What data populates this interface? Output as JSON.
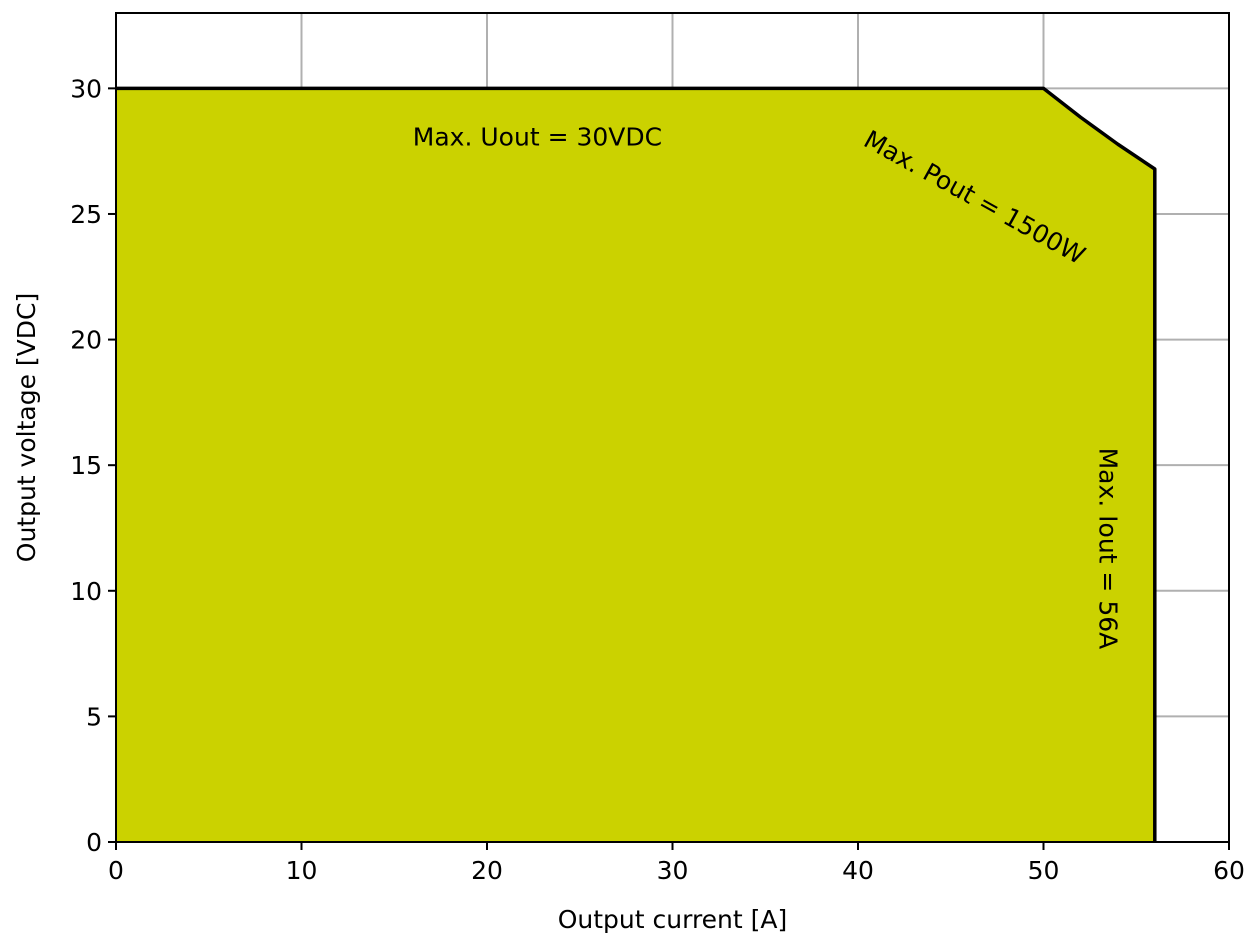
{
  "chart_data": {
    "type": "area",
    "xlabel": "Output current [A]",
    "ylabel": "Output voltage [VDC]",
    "xlim": [
      0,
      60
    ],
    "ylim": [
      0,
      33
    ],
    "xticks": [
      0,
      10,
      20,
      30,
      40,
      50,
      60
    ],
    "yticks": [
      0,
      5,
      10,
      15,
      20,
      25,
      30
    ],
    "grid": true,
    "fill_color": "#cbd200",
    "series": [
      {
        "x": [
          0,
          50,
          52,
          54,
          56,
          56
        ],
        "y": [
          30,
          30,
          28.85,
          27.78,
          26.79,
          0
        ]
      }
    ],
    "annotations": [
      {
        "text": "Max. Uout = 30VDC",
        "x": 16,
        "y": 28,
        "rotation": 0
      },
      {
        "text": "Max. Pout = 1500W",
        "x": 40.4,
        "y": 28,
        "rotation": 29
      },
      {
        "text": "Max. Iout = 56A",
        "x": 53.4,
        "y": 15.7,
        "rotation": 90
      }
    ]
  }
}
